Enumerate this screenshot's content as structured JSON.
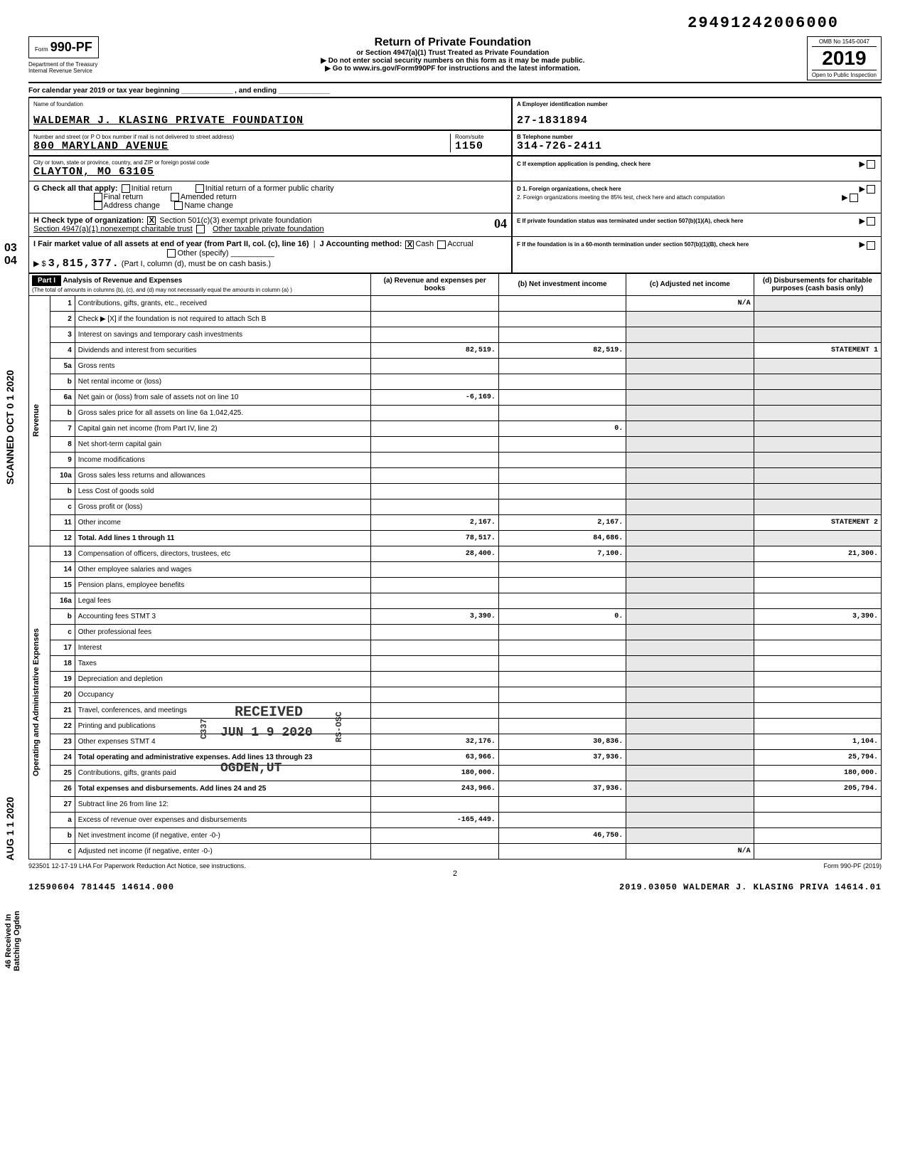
{
  "tracking_number": "29491242006000",
  "form": {
    "code_prefix": "Form",
    "code": "990-PF",
    "dept1": "Department of the Treasury",
    "dept2": "Internal Revenue Service"
  },
  "title": {
    "main": "Return of Private Foundation",
    "sub1": "or Section 4947(a)(1) Trust Treated as Private Foundation",
    "sub2": "▶ Do not enter social security numbers on this form as it may be made public.",
    "sub3": "▶ Go to www.irs.gov/Form990PF for instructions and the latest information."
  },
  "year_box": {
    "omb": "OMB No 1545-0047",
    "year": "2019",
    "open": "Open to Public Inspection"
  },
  "calendar_line": "For calendar year 2019 or tax year beginning _____________ , and ending _____________",
  "foundation": {
    "name_label": "Name of foundation",
    "name": "WALDEMAR J. KLASING PRIVATE FOUNDATION",
    "addr_label": "Number and street (or P O box number if mail is not delivered to street address)",
    "street": "800 MARYLAND AVENUE",
    "room_label": "Room/suite",
    "room": "1150",
    "city_label": "City or town, state or province, country, and ZIP or foreign postal code",
    "city": "CLAYTON, MO   63105"
  },
  "ein": {
    "label": "A Employer identification number",
    "value": "27-1831894"
  },
  "phone": {
    "label": "B Telephone number",
    "value": "314-726-2411"
  },
  "boxC": "C If exemption application is pending, check here",
  "boxD1": "D 1. Foreign organizations, check here",
  "boxD2": "2. Foreign organizations meeting the 85% test, check here and attach computation",
  "boxE": "E If private foundation status was terminated under section 507(b)(1)(A), check here",
  "boxF": "F If the foundation is in a 60-month termination under section 507(b)(1)(B), check here",
  "checkG": {
    "label": "G Check all that apply:",
    "opts": [
      "Initial return",
      "Final return",
      "Address change",
      "Initial return of a former public charity",
      "Amended return",
      "Name change"
    ]
  },
  "checkH": {
    "label": "H Check type of organization:",
    "opt1": "Section 501(c)(3) exempt private foundation",
    "opt2": "Section 4947(a)(1) nonexempt charitable trust",
    "opt3": "Other taxable private foundation",
    "marked": "X",
    "side_num": "04"
  },
  "checkI": {
    "label": "I Fair market value of all assets at end of year (from Part II, col. (c), line 16)",
    "arrow": "▶ $",
    "value": "3,815,377.",
    "j_label": "J Accounting method:",
    "j_cash": "Cash",
    "j_accrual": "Accrual",
    "j_other": "Other (specify)",
    "note": "(Part I, column (d), must be on cash basis.)"
  },
  "part1": {
    "label": "Part I",
    "heading": "Analysis of Revenue and Expenses",
    "heading_sub": "(The total of amounts in columns (b), (c), and (d) may not necessarily equal the amounts in column (a) )",
    "cols": {
      "a": "(a) Revenue and expenses per books",
      "b": "(b) Net investment income",
      "c": "(c) Adjusted net income",
      "d": "(d) Disbursements for charitable purposes (cash basis only)"
    }
  },
  "side_labels": {
    "revenue": "Revenue",
    "expenses": "Operating and Administrative Expenses"
  },
  "lines": [
    {
      "n": "1",
      "label": "Contributions, gifts, grants, etc., received",
      "a": "",
      "b": "",
      "c": "N/A",
      "d": ""
    },
    {
      "n": "2",
      "label": "Check ▶ [X] if the foundation is not required to attach Sch B",
      "a": "",
      "b": "",
      "c": "",
      "d": ""
    },
    {
      "n": "3",
      "label": "Interest on savings and temporary cash investments",
      "a": "",
      "b": "",
      "c": "",
      "d": ""
    },
    {
      "n": "4",
      "label": "Dividends and interest from securities",
      "a": "82,519.",
      "b": "82,519.",
      "c": "",
      "d": "STATEMENT 1"
    },
    {
      "n": "5a",
      "label": "Gross rents",
      "a": "",
      "b": "",
      "c": "",
      "d": ""
    },
    {
      "n": "b",
      "label": "Net rental income or (loss)",
      "a": "",
      "b": "",
      "c": "",
      "d": ""
    },
    {
      "n": "6a",
      "label": "Net gain or (loss) from sale of assets not on line 10",
      "a": "-6,169.",
      "b": "",
      "c": "",
      "d": ""
    },
    {
      "n": "b",
      "label": "Gross sales price for all assets on line 6a    1,042,425.",
      "a": "",
      "b": "",
      "c": "",
      "d": ""
    },
    {
      "n": "7",
      "label": "Capital gain net income (from Part IV, line 2)",
      "a": "",
      "b": "0.",
      "c": "",
      "d": ""
    },
    {
      "n": "8",
      "label": "Net short-term capital gain",
      "a": "",
      "b": "",
      "c": "",
      "d": ""
    },
    {
      "n": "9",
      "label": "Income modifications",
      "a": "",
      "b": "",
      "c": "",
      "d": ""
    },
    {
      "n": "10a",
      "label": "Gross sales less returns and allowances",
      "a": "",
      "b": "",
      "c": "",
      "d": ""
    },
    {
      "n": "b",
      "label": "Less Cost of goods sold",
      "a": "",
      "b": "",
      "c": "",
      "d": ""
    },
    {
      "n": "c",
      "label": "Gross profit or (loss)",
      "a": "",
      "b": "",
      "c": "",
      "d": ""
    },
    {
      "n": "11",
      "label": "Other income",
      "a": "2,167.",
      "b": "2,167.",
      "c": "",
      "d": "STATEMENT 2"
    },
    {
      "n": "12",
      "label": "Total. Add lines 1 through 11",
      "a": "78,517.",
      "b": "84,686.",
      "c": "",
      "d": ""
    },
    {
      "n": "13",
      "label": "Compensation of officers, directors, trustees, etc",
      "a": "28,400.",
      "b": "7,100.",
      "c": "",
      "d": "21,300."
    },
    {
      "n": "14",
      "label": "Other employee salaries and wages",
      "a": "",
      "b": "",
      "c": "",
      "d": ""
    },
    {
      "n": "15",
      "label": "Pension plans, employee benefits",
      "a": "",
      "b": "",
      "c": "",
      "d": ""
    },
    {
      "n": "16a",
      "label": "Legal fees",
      "a": "",
      "b": "",
      "c": "",
      "d": ""
    },
    {
      "n": "b",
      "label": "Accounting fees                 STMT 3",
      "a": "3,390.",
      "b": "0.",
      "c": "",
      "d": "3,390."
    },
    {
      "n": "c",
      "label": "Other professional fees",
      "a": "",
      "b": "",
      "c": "",
      "d": ""
    },
    {
      "n": "17",
      "label": "Interest",
      "a": "",
      "b": "",
      "c": "",
      "d": ""
    },
    {
      "n": "18",
      "label": "Taxes",
      "a": "",
      "b": "",
      "c": "",
      "d": ""
    },
    {
      "n": "19",
      "label": "Depreciation and depletion",
      "a": "",
      "b": "",
      "c": "",
      "d": ""
    },
    {
      "n": "20",
      "label": "Occupancy",
      "a": "",
      "b": "",
      "c": "",
      "d": ""
    },
    {
      "n": "21",
      "label": "Travel, conferences, and meetings",
      "a": "",
      "b": "",
      "c": "",
      "d": ""
    },
    {
      "n": "22",
      "label": "Printing and publications",
      "a": "",
      "b": "",
      "c": "",
      "d": ""
    },
    {
      "n": "23",
      "label": "Other expenses              STMT 4",
      "a": "32,176.",
      "b": "30,836.",
      "c": "",
      "d": "1,104."
    },
    {
      "n": "24",
      "label": "Total operating and administrative expenses. Add lines 13 through 23",
      "a": "63,966.",
      "b": "37,936.",
      "c": "",
      "d": "25,794."
    },
    {
      "n": "25",
      "label": "Contributions, gifts, grants paid",
      "a": "180,000.",
      "b": "",
      "c": "",
      "d": "180,000."
    },
    {
      "n": "26",
      "label": "Total expenses and disbursements. Add lines 24 and 25",
      "a": "243,966.",
      "b": "37,936.",
      "c": "",
      "d": "205,794."
    },
    {
      "n": "27",
      "label": "Subtract line 26 from line 12:",
      "a": "",
      "b": "",
      "c": "",
      "d": ""
    },
    {
      "n": "a",
      "label": "Excess of revenue over expenses and disbursements",
      "a": "-165,449.",
      "b": "",
      "c": "",
      "d": ""
    },
    {
      "n": "b",
      "label": "Net investment income (if negative, enter -0-)",
      "a": "",
      "b": "46,750.",
      "c": "",
      "d": ""
    },
    {
      "n": "c",
      "label": "Adjusted net income (if negative, enter -0-)",
      "a": "",
      "b": "",
      "c": "N/A",
      "d": ""
    }
  ],
  "stamps": {
    "received": "RECEIVED",
    "date": "JUN 1 9 2020",
    "ogden": "OGDEN,UT",
    "c337": "C337",
    "rsosc": "RS-OSC"
  },
  "left_margin": {
    "scanned": "SCANNED OCT 0 1 2020",
    "aug": "AUG 1 1 2020",
    "received_in": "46 Received In\nBatching Ogden",
    "topfrac": "03\n04"
  },
  "footer": {
    "left_small": "923501 12-17-19   LHA  For Paperwork Reduction Act Notice, see instructions.",
    "form_ref": "Form 990-PF (2019)",
    "page": "2",
    "bottom_left": "12590604 781445 14614.000",
    "bottom_right": "2019.03050 WALDEMAR J. KLASING PRIVA 14614.01"
  }
}
